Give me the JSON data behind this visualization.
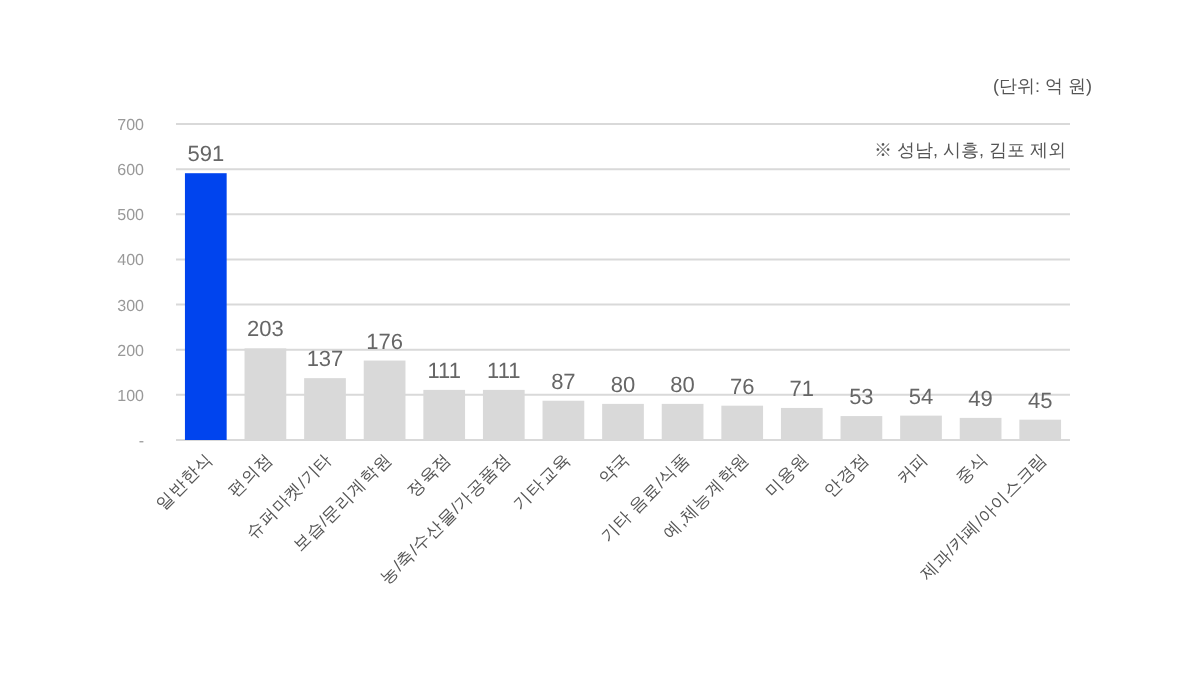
{
  "chart_data": {
    "type": "bar",
    "categories": [
      "일반한식",
      "편의점",
      "슈퍼마켓/기타",
      "보습/문리계학원",
      "정육점",
      "농/축/수산물/가공품점",
      "기타교육",
      "약국",
      "기타 음료/식품",
      "예,체능계학원",
      "미용원",
      "안경점",
      "커피",
      "중식",
      "제과/카페/아이스크림"
    ],
    "values": [
      591,
      203,
      137,
      176,
      111,
      111,
      87,
      80,
      80,
      76,
      71,
      53,
      54,
      49,
      45
    ],
    "colors": [
      "#0044ee",
      "#d9d9d9",
      "#d9d9d9",
      "#d9d9d9",
      "#d9d9d9",
      "#d9d9d9",
      "#d9d9d9",
      "#d9d9d9",
      "#d9d9d9",
      "#d9d9d9",
      "#d9d9d9",
      "#d9d9d9",
      "#d9d9d9",
      "#d9d9d9",
      "#d9d9d9"
    ],
    "ylim": [
      0,
      700
    ],
    "yticks": [
      {
        "value": 0,
        "label": "-"
      },
      100,
      200,
      300,
      400,
      500,
      600,
      700
    ],
    "grid": "y",
    "data_labels": true,
    "annotations": [
      "(단위: 억 원)",
      "※ 성남, 시흥, 김포 제외"
    ]
  }
}
